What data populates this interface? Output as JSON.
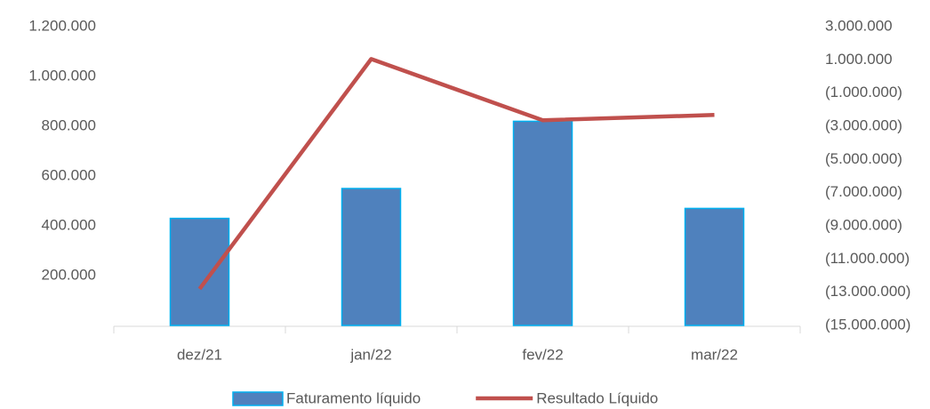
{
  "chart_data": {
    "type": "bar_line",
    "categories": [
      "dez/21",
      "jan/22",
      "fev/22",
      "mar/22"
    ],
    "series": [
      {
        "name": "Faturamento líquido",
        "type": "bar",
        "color": "#4f81bd",
        "values": [
          430000,
          550000,
          820000,
          470000
        ]
      },
      {
        "name": "Resultado Líquido",
        "type": "line",
        "axis": "y2",
        "color": "#c0504d",
        "values": [
          -12800000,
          1050000,
          -2640000,
          -2320000
        ]
      }
    ],
    "ylim": [
      0,
      1200000
    ],
    "yticks": [
      {
        "value": 200000,
        "label": "200.000"
      },
      {
        "value": 400000,
        "label": "400.000"
      },
      {
        "value": 600000,
        "label": "600.000"
      },
      {
        "value": 800000,
        "label": "800.000"
      },
      {
        "value": 1000000,
        "label": "1.000.000"
      },
      {
        "value": 1200000,
        "label": "1.200.000"
      }
    ],
    "y2lim": [
      -15000000,
      3000000
    ],
    "y2ticks": [
      {
        "value": -15000000,
        "label": "(15.000.000)"
      },
      {
        "value": -13000000,
        "label": "(13.000.000)"
      },
      {
        "value": -11000000,
        "label": "(11.000.000)"
      },
      {
        "value": -9000000,
        "label": "(9.000.000)"
      },
      {
        "value": -7000000,
        "label": "(7.000.000)"
      },
      {
        "value": -5000000,
        "label": "(5.000.000)"
      },
      {
        "value": -3000000,
        "label": "(3.000.000)"
      },
      {
        "value": -1000000,
        "label": "(1.000.000)"
      },
      {
        "value": 1000000,
        "label": "1.000.000"
      },
      {
        "value": 3000000,
        "label": "3.000.000"
      }
    ],
    "legend": "bottom"
  }
}
